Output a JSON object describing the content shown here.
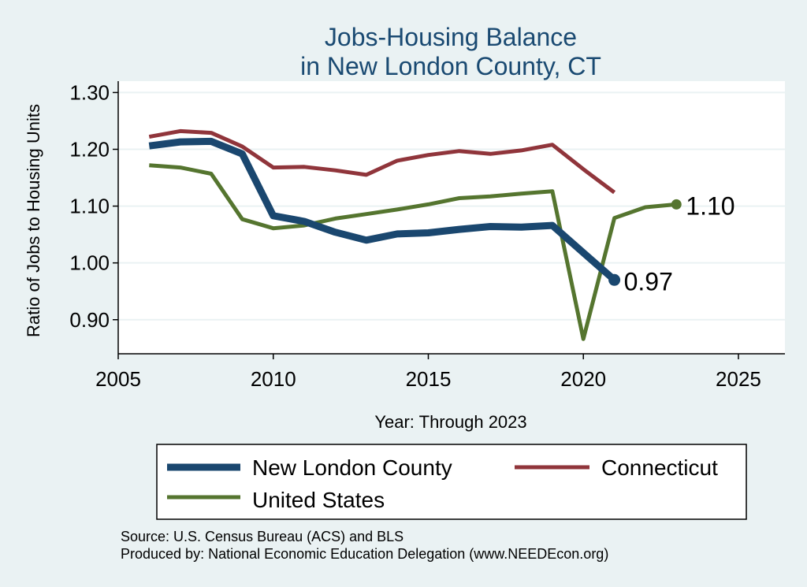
{
  "chart_data": {
    "type": "line",
    "title": [
      "Jobs-Housing Balance",
      "in New London County, CT"
    ],
    "xlabel": "Year: Through 2023",
    "ylabel": "Ratio of Jobs to Housing Units",
    "xlim": [
      2005,
      2026.5
    ],
    "ylim": [
      0.84,
      1.32
    ],
    "xticks": [
      2005,
      2010,
      2015,
      2020,
      2025
    ],
    "yticks": [
      0.9,
      1.0,
      1.1,
      1.2,
      1.3
    ],
    "ytick_labels": [
      "0.90",
      "1.00",
      "1.10",
      "1.20",
      "1.30"
    ],
    "grid": true,
    "series": [
      {
        "name": "New London County",
        "color": "#1a476f",
        "x": [
          2006,
          2007,
          2008,
          2009,
          2010,
          2011,
          2012,
          2013,
          2014,
          2015,
          2016,
          2017,
          2018,
          2019,
          2020,
          2021
        ],
        "values": [
          1.206,
          1.213,
          1.214,
          1.192,
          1.083,
          1.073,
          1.054,
          1.04,
          1.051,
          1.053,
          1.059,
          1.064,
          1.063,
          1.066,
          1.018,
          0.97
        ],
        "end_label": "0.97"
      },
      {
        "name": "Connecticut",
        "color": "#90353b",
        "x": [
          2006,
          2007,
          2008,
          2009,
          2010,
          2011,
          2012,
          2013,
          2014,
          2015,
          2016,
          2017,
          2018,
          2019,
          2020,
          2021
        ],
        "values": [
          1.222,
          1.232,
          1.229,
          1.205,
          1.168,
          1.169,
          1.163,
          1.155,
          1.18,
          1.19,
          1.197,
          1.192,
          1.198,
          1.208,
          1.165,
          1.124
        ]
      },
      {
        "name": "United States",
        "color": "#55752f",
        "x": [
          2006,
          2007,
          2008,
          2009,
          2010,
          2011,
          2012,
          2013,
          2014,
          2015,
          2016,
          2017,
          2018,
          2019,
          2020,
          2021,
          2022,
          2023
        ],
        "values": [
          1.172,
          1.168,
          1.157,
          1.077,
          1.061,
          1.066,
          1.078,
          1.086,
          1.094,
          1.103,
          1.114,
          1.117,
          1.122,
          1.126,
          0.866,
          1.079,
          1.098,
          1.103
        ],
        "end_label": "1.10"
      }
    ],
    "legend": [
      "New London County",
      "Connecticut",
      "United States"
    ],
    "legend_position": "bottom"
  },
  "notes": {
    "source": "Source: U.S. Census Bureau (ACS) and BLS",
    "produced": "Produced by: National Economic Education Delegation (www.NEEDEcon.org)"
  }
}
